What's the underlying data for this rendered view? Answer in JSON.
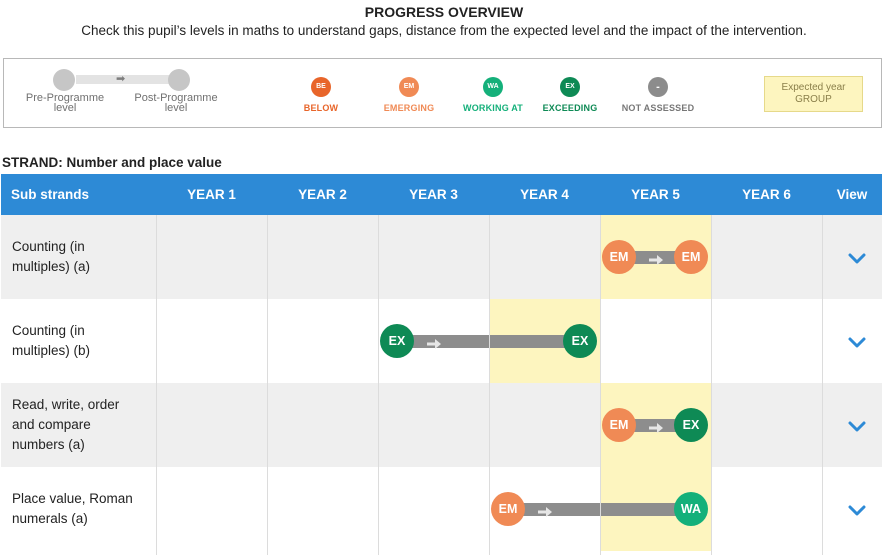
{
  "header": {
    "title": "PROGRESS OVERVIEW",
    "subtitle": "Check this pupil’s levels in maths to understand gaps, distance from the expected level and the impact of the intervention."
  },
  "legend": {
    "pre_label_line1": "Pre-Programme",
    "pre_label_line2": "level",
    "post_label_line1": "Post-Programme",
    "post_label_line2": "level",
    "levels": [
      {
        "code": "BE",
        "label": "BELOW",
        "color": "#e8652a"
      },
      {
        "code": "EM",
        "label": "EMERGING",
        "color": "#f08a55"
      },
      {
        "code": "WA",
        "label": "WORKING AT",
        "color": "#14b07a"
      },
      {
        "code": "EX",
        "label": "EXCEEDING",
        "color": "#0e8a55"
      },
      {
        "code": "-",
        "label": "NOT ASSESSED",
        "color": "#8c8c8c"
      }
    ],
    "expected_line1": "Expected year",
    "expected_line2": "GROUP"
  },
  "strand": {
    "label": "STRAND: Number and place value"
  },
  "table": {
    "columns": [
      "Sub strands",
      "YEAR 1",
      "YEAR 2",
      "YEAR 3",
      "YEAR 4",
      "YEAR 5",
      "YEAR 6",
      "View"
    ],
    "rows": [
      {
        "label_lines": [
          "Counting (in",
          "multiples) (a)"
        ],
        "expected_year": 5,
        "pre": {
          "code": "EM",
          "year": 5
        },
        "post": {
          "code": "EM",
          "year": 5
        }
      },
      {
        "label_lines": [
          "Counting (in",
          "multiples) (b)"
        ],
        "expected_year": 4,
        "pre": {
          "code": "EX",
          "year": 3
        },
        "post": {
          "code": "EX",
          "year": 4
        }
      },
      {
        "label_lines": [
          "Read, write, order",
          "and compare",
          "numbers (a)"
        ],
        "expected_year": 5,
        "pre": {
          "code": "EM",
          "year": 5
        },
        "post": {
          "code": "EX",
          "year": 5
        }
      },
      {
        "label_lines": [
          "Place value, Roman",
          "numerals (a)"
        ],
        "expected_year": 5,
        "pre": {
          "code": "EM",
          "year": 4
        },
        "post": {
          "code": "WA",
          "year": 5
        }
      }
    ]
  },
  "colors": {
    "header_blue": "#2d8ad6",
    "expected_yellow": "#fdf5bf",
    "bar_gray": "#8d8d8d",
    "chevron": "#2d8ad6"
  }
}
